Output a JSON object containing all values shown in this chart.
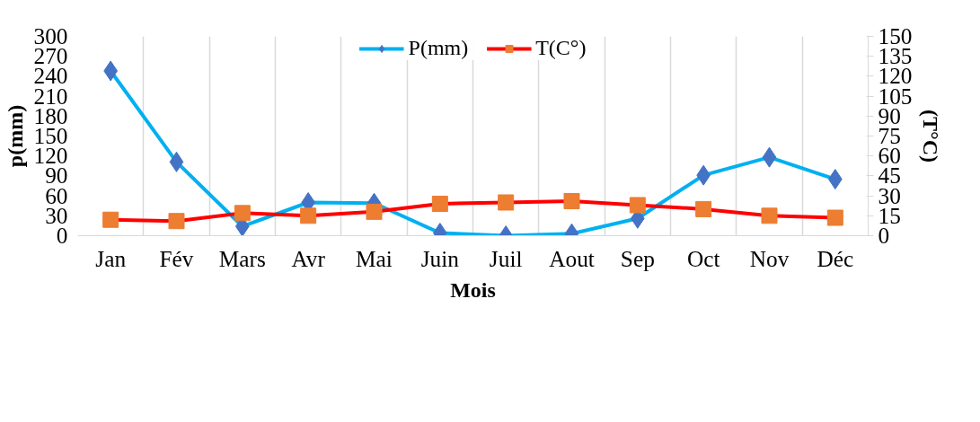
{
  "chart_data": {
    "type": "line",
    "xlabel": "Mois",
    "ylabel": "p(mm)",
    "y2label": "(T°C)",
    "categories": [
      "Jan",
      "Fév",
      "Mars",
      "Avr",
      "Mai",
      "Juin",
      "Juil",
      "Aout",
      "Sep",
      "Oct",
      "Nov",
      "Déc"
    ],
    "series": [
      {
        "name": "P(mm)",
        "color": "#00b0f0",
        "marker": "diamond",
        "colors": [
          "#4472c4",
          "#4472c4",
          "#4472c4",
          "#4472c4",
          "#4472c4",
          "#4472c4",
          "#4472c4",
          "#4472c4",
          "#4472c4",
          "#4472c4",
          "#4472c4",
          "#4472c4"
        ],
        "values": [
          248,
          111,
          14,
          50,
          49,
          4,
          0,
          3,
          26,
          91,
          118,
          85
        ]
      },
      {
        "name": "T(C°)",
        "color": "#ff0000",
        "marker": "square",
        "axis": "y2",
        "colors": [
          "#ed7d31",
          "#ed7d31",
          "#ed7d31",
          "#ed7d31",
          "#ed7d31",
          "#ed7d31",
          "#ed7d31",
          "#ed7d31",
          "#ed7d31",
          "#ed7d31",
          "#ed7d31",
          "#ed7d31"
        ],
        "values": [
          12,
          11,
          17,
          15,
          18,
          24,
          25,
          26,
          23,
          20,
          15,
          13.5
        ]
      }
    ],
    "ylim": [
      0,
      300
    ],
    "yticks": [
      0,
      30,
      60,
      90,
      120,
      150,
      180,
      210,
      240,
      270,
      300
    ],
    "y2lim": [
      0,
      150
    ],
    "y2ticks": [
      0,
      15,
      30,
      45,
      60,
      75,
      90,
      105,
      120,
      135,
      150
    ],
    "grid": "x",
    "legend": "top",
    "line_style": "solid"
  }
}
